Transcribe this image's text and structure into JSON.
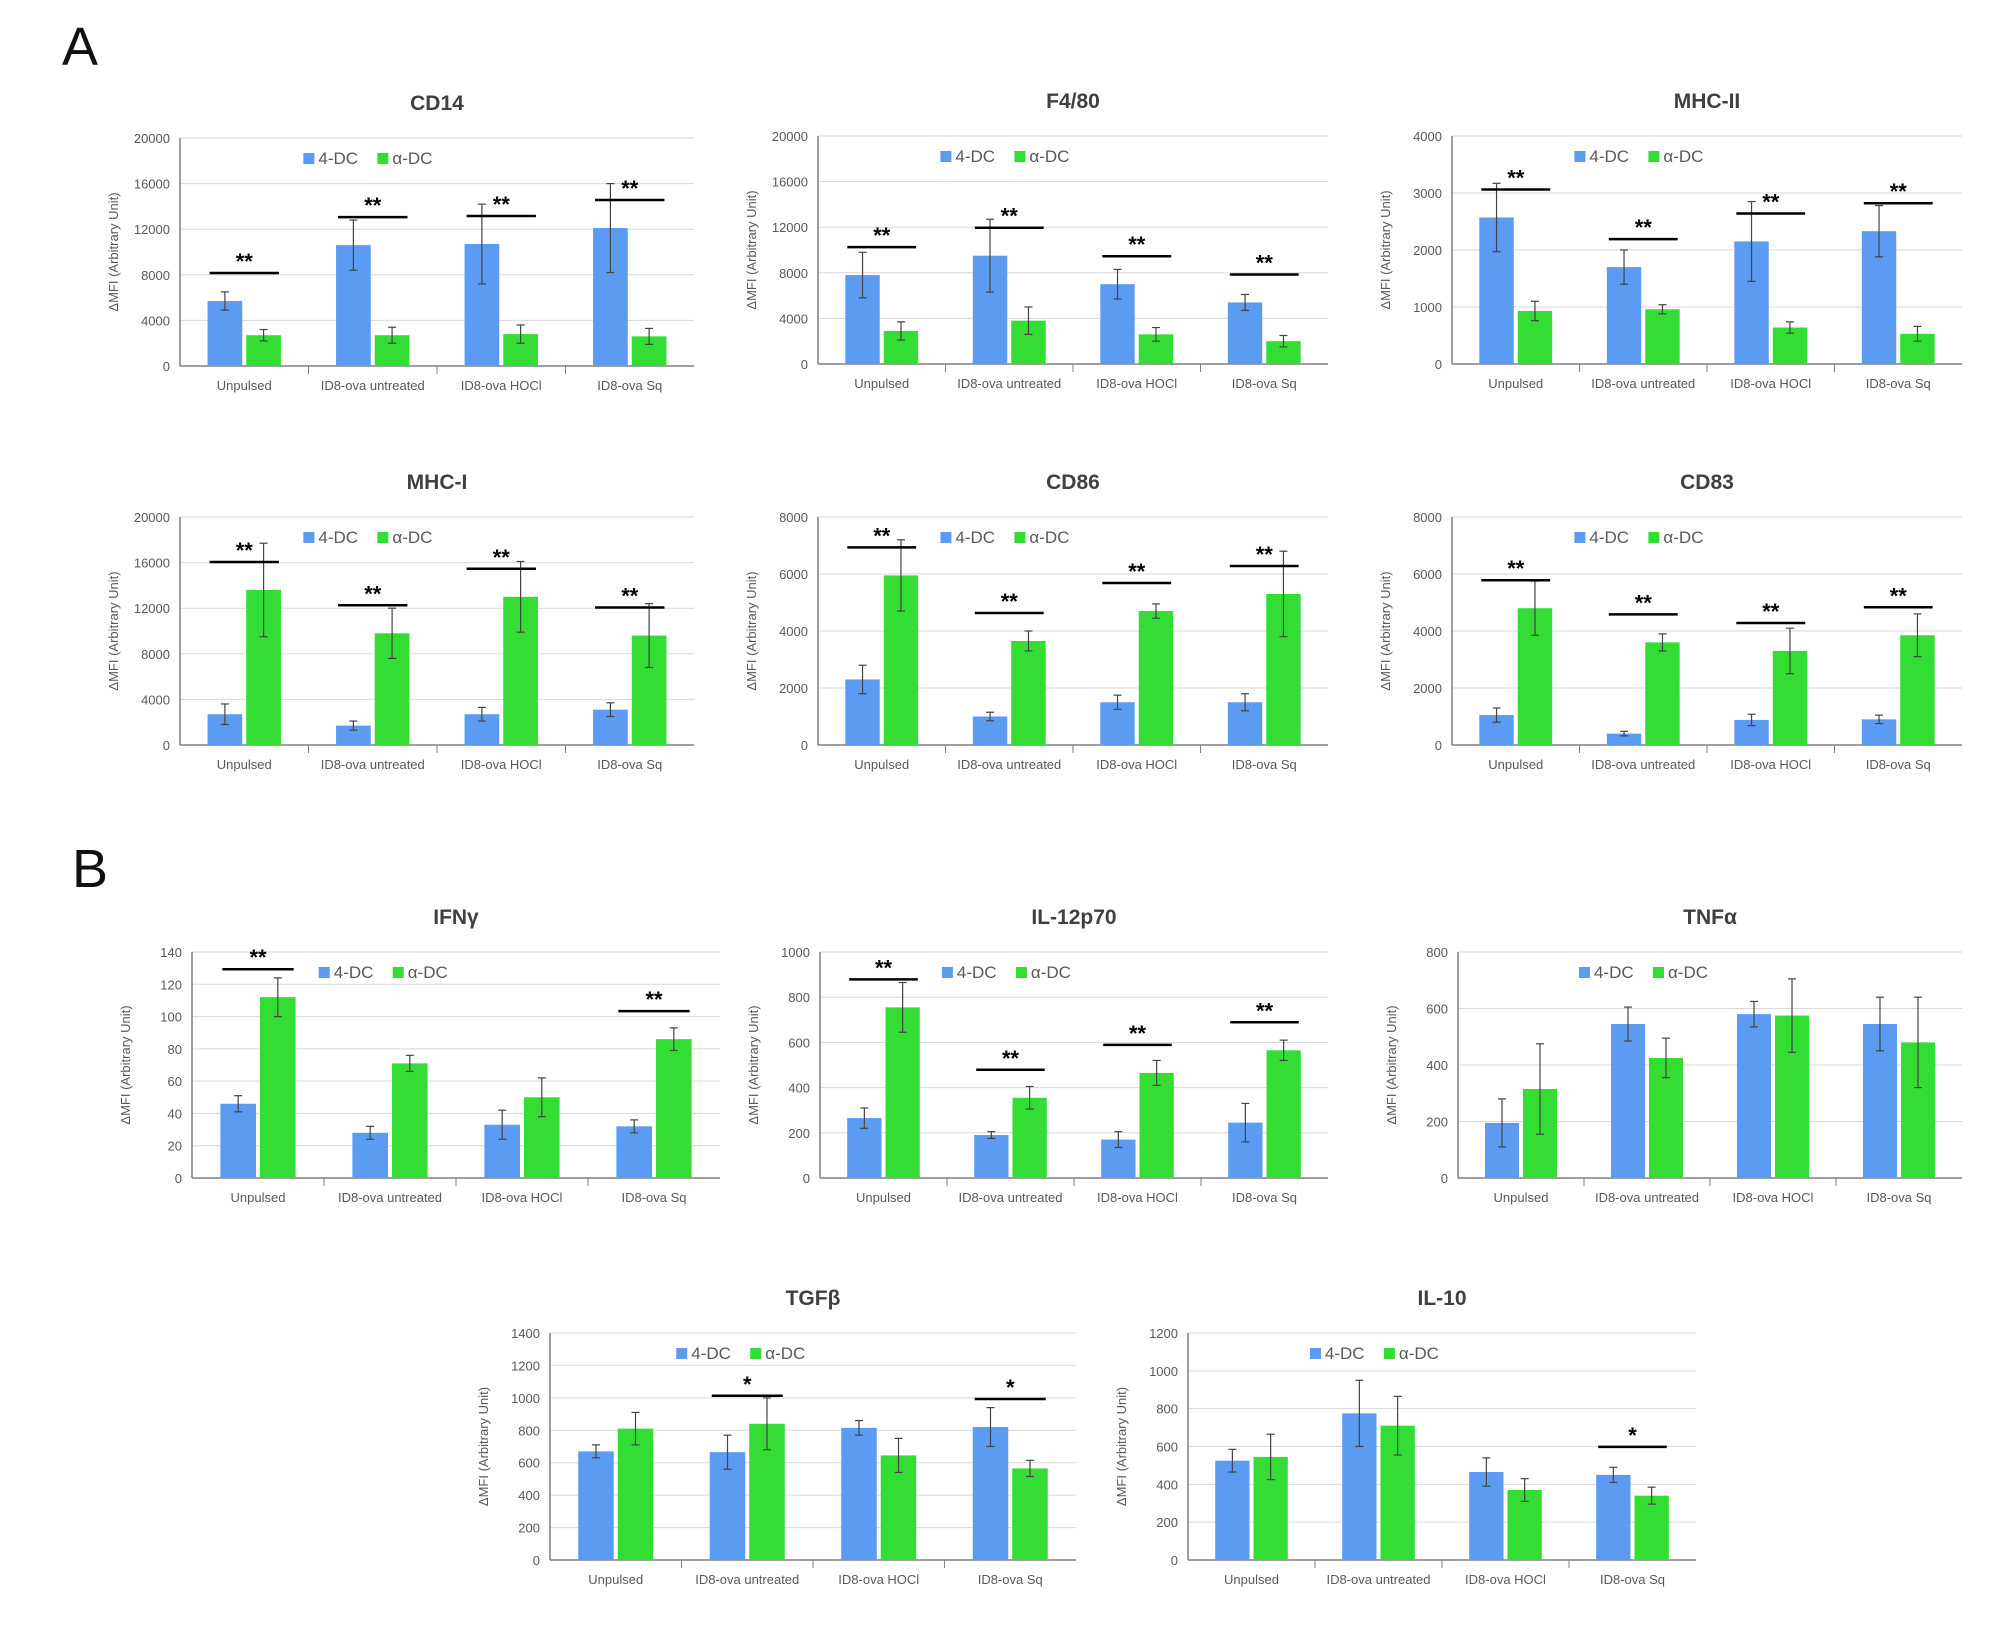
{
  "panels": {
    "a": "A",
    "b": "B"
  },
  "colors": {
    "dc4": "#5b9bf1",
    "alpha": "#33dd33",
    "axis": "#808080",
    "grid": "#d9d9d9",
    "text": "#595959",
    "title": "#404040"
  },
  "ylabel": "ΔMFI (Arbitrary Unit)",
  "legend": [
    "4-DC",
    "α-DC"
  ],
  "categories": [
    "Unpulsed",
    "ID8-ova untreated",
    "ID8-ova HOCl",
    "ID8-ova Sq"
  ],
  "chart_data": [
    {
      "type": "bar",
      "title": "CD14",
      "ymax": 20000,
      "ticks": [
        0,
        4000,
        8000,
        12000,
        16000,
        20000
      ],
      "series": [
        {
          "name": "4-DC",
          "values": [
            5700,
            10600,
            10700,
            12100
          ],
          "errors": [
            800,
            2200,
            3500,
            3900
          ]
        },
        {
          "name": "α-DC",
          "values": [
            2700,
            2700,
            2800,
            2600
          ],
          "errors": [
            500,
            700,
            800,
            700
          ]
        }
      ],
      "significance": [
        "**",
        "**",
        "**",
        "**"
      ]
    },
    {
      "type": "bar",
      "title": "F4/80",
      "ymax": 20000,
      "ticks": [
        0,
        4000,
        8000,
        12000,
        16000,
        20000
      ],
      "series": [
        {
          "name": "4-DC",
          "values": [
            7800,
            9500,
            7000,
            5400
          ],
          "errors": [
            2000,
            3200,
            1300,
            700
          ]
        },
        {
          "name": "α-DC",
          "values": [
            2900,
            3800,
            2600,
            2000
          ],
          "errors": [
            800,
            1200,
            600,
            500
          ]
        }
      ],
      "significance": [
        "**",
        "**",
        "**",
        "**"
      ]
    },
    {
      "type": "bar",
      "title": "MHC-II",
      "ymax": 4000,
      "ticks": [
        0,
        1000,
        2000,
        3000,
        4000
      ],
      "series": [
        {
          "name": "4-DC",
          "values": [
            2570,
            1700,
            2150,
            2330
          ],
          "errors": [
            600,
            300,
            700,
            450
          ]
        },
        {
          "name": "α-DC",
          "values": [
            930,
            960,
            640,
            530
          ],
          "errors": [
            170,
            80,
            100,
            130
          ]
        }
      ],
      "significance": [
        "**",
        "**",
        "**",
        "**"
      ]
    },
    {
      "type": "bar",
      "title": "MHC-I",
      "ymax": 20000,
      "ticks": [
        0,
        4000,
        8000,
        12000,
        16000,
        20000
      ],
      "series": [
        {
          "name": "4-DC",
          "values": [
            2700,
            1700,
            2700,
            3100
          ],
          "errors": [
            900,
            400,
            600,
            600
          ]
        },
        {
          "name": "α-DC",
          "values": [
            13600,
            9800,
            13000,
            9600
          ],
          "errors": [
            4100,
            2200,
            3100,
            2800
          ]
        }
      ],
      "significance": [
        "**",
        "**",
        "**",
        "**"
      ]
    },
    {
      "type": "bar",
      "title": "CD86",
      "ymax": 8000,
      "ticks": [
        0,
        2000,
        4000,
        6000,
        8000
      ],
      "series": [
        {
          "name": "4-DC",
          "values": [
            2300,
            1000,
            1500,
            1500
          ],
          "errors": [
            500,
            150,
            250,
            300
          ]
        },
        {
          "name": "α-DC",
          "values": [
            5950,
            3650,
            4700,
            5300
          ],
          "errors": [
            1250,
            350,
            250,
            1500
          ]
        }
      ],
      "significance": [
        "**",
        "**",
        "**",
        "**"
      ]
    },
    {
      "type": "bar",
      "title": "CD83",
      "ymax": 8000,
      "ticks": [
        0,
        2000,
        4000,
        6000,
        8000
      ],
      "series": [
        {
          "name": "4-DC",
          "values": [
            1050,
            400,
            880,
            900
          ],
          "errors": [
            250,
            80,
            200,
            150
          ]
        },
        {
          "name": "α-DC",
          "values": [
            4800,
            3600,
            3300,
            3850
          ],
          "errors": [
            950,
            300,
            800,
            750
          ]
        }
      ],
      "significance": [
        "**",
        "**",
        "**",
        "**"
      ]
    },
    {
      "type": "bar",
      "title": "IFNγ",
      "ymax": 140,
      "ticks": [
        0,
        20,
        40,
        60,
        80,
        100,
        120,
        140
      ],
      "series": [
        {
          "name": "4-DC",
          "values": [
            46,
            28,
            33,
            32
          ],
          "errors": [
            5,
            4,
            9,
            4
          ]
        },
        {
          "name": "α-DC",
          "values": [
            112,
            71,
            50,
            86
          ],
          "errors": [
            12,
            5,
            12,
            7
          ]
        }
      ],
      "significance": [
        "**",
        "",
        "",
        "**"
      ]
    },
    {
      "type": "bar",
      "title": "IL-12p70",
      "ymax": 1000,
      "ticks": [
        0,
        200,
        400,
        600,
        800,
        1000
      ],
      "series": [
        {
          "name": "4-DC",
          "values": [
            265,
            190,
            170,
            245
          ],
          "errors": [
            45,
            15,
            35,
            85
          ]
        },
        {
          "name": "α-DC",
          "values": [
            755,
            355,
            465,
            565
          ],
          "errors": [
            110,
            50,
            55,
            45
          ]
        }
      ],
      "significance": [
        "**",
        "**",
        "**",
        "**"
      ]
    },
    {
      "type": "bar",
      "title": "TNFα",
      "ymax": 800,
      "ticks": [
        0,
        200,
        400,
        600,
        800
      ],
      "series": [
        {
          "name": "4-DC",
          "values": [
            195,
            545,
            580,
            545
          ],
          "errors": [
            85,
            60,
            45,
            95
          ]
        },
        {
          "name": "α-DC",
          "values": [
            315,
            425,
            575,
            480
          ],
          "errors": [
            160,
            70,
            130,
            160
          ]
        }
      ],
      "significance": [
        "",
        "",
        "",
        ""
      ]
    },
    {
      "type": "bar",
      "title": "TGFβ",
      "ymax": 1400,
      "ticks": [
        0,
        200,
        400,
        600,
        800,
        1000,
        1200,
        1400
      ],
      "series": [
        {
          "name": "4-DC",
          "values": [
            670,
            665,
            815,
            820
          ],
          "errors": [
            40,
            105,
            45,
            120
          ]
        },
        {
          "name": "α-DC",
          "values": [
            810,
            840,
            645,
            565
          ],
          "errors": [
            100,
            160,
            105,
            50
          ]
        }
      ],
      "significance": [
        "",
        "*",
        "",
        "*"
      ]
    },
    {
      "type": "bar",
      "title": "IL-10",
      "ymax": 1200,
      "ticks": [
        0,
        200,
        400,
        600,
        800,
        1000,
        1200
      ],
      "series": [
        {
          "name": "4-DC",
          "values": [
            525,
            775,
            465,
            450
          ],
          "errors": [
            60,
            175,
            75,
            40
          ]
        },
        {
          "name": "α-DC",
          "values": [
            545,
            710,
            370,
            340
          ],
          "errors": [
            120,
            155,
            60,
            45
          ]
        }
      ],
      "significance": [
        "",
        "",
        "",
        "*"
      ]
    }
  ]
}
